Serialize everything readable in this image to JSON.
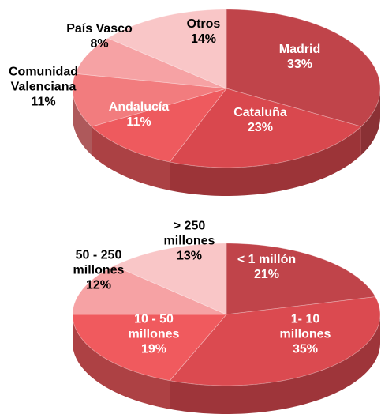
{
  "chart_data": [
    {
      "type": "pie3d",
      "categories": [
        "Madrid",
        "Cataluña",
        "Andalucía",
        "Comunidad Valenciana",
        "País Vasco",
        "Otros"
      ],
      "values": [
        33,
        23,
        11,
        11,
        8,
        14
      ],
      "value_labels": [
        "33%",
        "23%",
        "11%",
        "11%",
        "8%",
        "14%"
      ],
      "colors": [
        "#c0444a",
        "#d9484e",
        "#ee5a5e",
        "#f27c7e",
        "#f6a2a4",
        "#f9c6c7"
      ]
    },
    {
      "type": "pie3d",
      "categories": [
        "< 1 millón",
        "1- 10 millones",
        "10 - 50 millones",
        "50 - 250 millones",
        "> 250 millones"
      ],
      "values": [
        21,
        35,
        19,
        12,
        13
      ],
      "value_labels": [
        "21%",
        "35%",
        "19%",
        "12%",
        "13%"
      ],
      "colors": [
        "#c0444a",
        "#db4a50",
        "#f05a5e",
        "#f6a2a4",
        "#f9c6c7"
      ]
    }
  ]
}
